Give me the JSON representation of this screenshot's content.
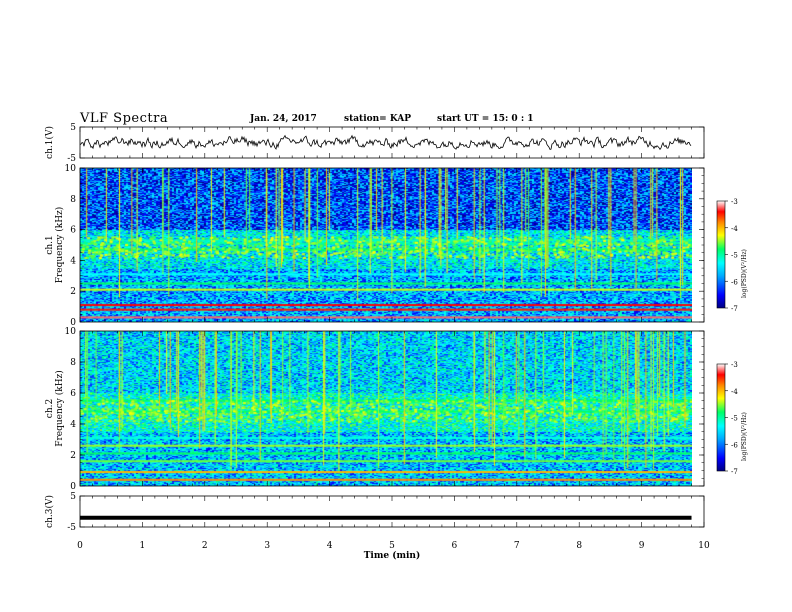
{
  "header": {
    "title": "VLF Spectra",
    "date": "Jan. 24, 2017",
    "station": "station= KAP",
    "start_time": "start UT = 15: 0 : 1"
  },
  "colors": {
    "trace": "#000000",
    "colormap": [
      "#000080",
      "#0000ff",
      "#00aaff",
      "#00ffff",
      "#00ff66",
      "#ffff00",
      "#ff8800",
      "#ff0000",
      "#ffffff"
    ]
  },
  "chart_data": [
    {
      "type": "line",
      "name": "ch1-waveform",
      "ylabel": "ch.1(V)",
      "ylim": [
        -5,
        5
      ],
      "yticks": [
        "5",
        "-5"
      ],
      "xlim": [
        0,
        10
      ],
      "trace_range": [
        0,
        9.8
      ],
      "trace_description": "noise about 0 V, amplitude ~1.5 V"
    },
    {
      "type": "heatmap",
      "name": "ch1-spectrogram",
      "ylabel": "ch.1 Frequency (kHz)",
      "ylim": [
        0,
        10
      ],
      "yticks": [
        "0",
        "2",
        "4",
        "6",
        "8",
        "10"
      ],
      "xlim": [
        0,
        9.8
      ],
      "bands_khz": [
        {
          "freq": 0.3,
          "level": -3.3
        },
        {
          "freq": 0.8,
          "level": -3.6
        },
        {
          "freq": 1.1,
          "level": -3.5
        },
        {
          "freq": 2.1,
          "level": -4.6
        },
        {
          "freq": 2.5,
          "level": -5.0
        },
        {
          "freq": 3.1,
          "level": -5.5
        },
        {
          "freq": 4.7,
          "level": -5.0
        },
        {
          "freq": 5.1,
          "level": -5.2
        },
        {
          "freq": 5.3,
          "level": -5.3
        }
      ],
      "colorbar": {
        "label": "log(PSD)(V²/Hz)",
        "ticks": [
          "-3",
          "-4",
          "-5",
          "-6",
          "-7"
        ],
        "range": [
          -7,
          -3
        ]
      }
    },
    {
      "type": "heatmap",
      "name": "ch2-spectrogram",
      "ylabel": "ch.2 Frequency (kHz)",
      "ylim": [
        0,
        10
      ],
      "yticks": [
        "0",
        "2",
        "4",
        "6",
        "8",
        "10"
      ],
      "xlim": [
        0,
        9.8
      ],
      "bands_khz": [
        {
          "freq": 0.4,
          "level": -4.0
        },
        {
          "freq": 0.9,
          "level": -4.2
        },
        {
          "freq": 1.6,
          "level": -4.8
        },
        {
          "freq": 2.1,
          "level": -5.0
        },
        {
          "freq": 2.6,
          "level": -4.7
        },
        {
          "freq": 3.1,
          "level": -5.4
        },
        {
          "freq": 4.8,
          "level": -5.0
        },
        {
          "freq": 5.5,
          "level": -5.0
        }
      ],
      "colorbar": {
        "label": "log(PSD)(V²/Hz)",
        "ticks": [
          "-3",
          "-4",
          "-5",
          "-6",
          "-7"
        ],
        "range": [
          -7,
          -3
        ]
      }
    },
    {
      "type": "line",
      "name": "ch3-waveform",
      "ylabel": "ch.3(V)",
      "ylim": [
        -5,
        5
      ],
      "yticks": [
        "5",
        "-5"
      ],
      "xlim": [
        0,
        10
      ],
      "trace_range": [
        0,
        9.8
      ],
      "trace_value": -2
    }
  ],
  "x_axis": {
    "label": "Time (min)",
    "ticks": [
      "0",
      "1",
      "2",
      "3",
      "4",
      "5",
      "6",
      "7",
      "8",
      "9",
      "10"
    ],
    "range": [
      0,
      10
    ]
  }
}
